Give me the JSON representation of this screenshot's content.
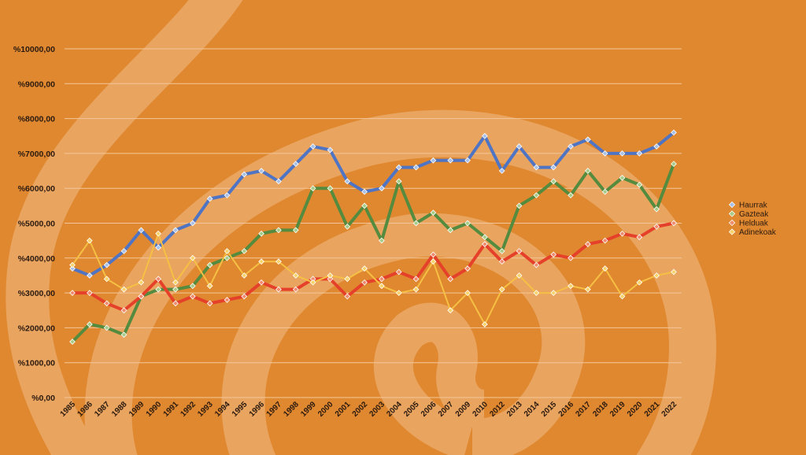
{
  "chart_data": {
    "type": "line",
    "title": "",
    "xlabel": "",
    "ylabel": "",
    "ylim": [
      0,
      10000
    ],
    "y_tick_values": [
      0,
      1000,
      2000,
      3000,
      4000,
      5000,
      6000,
      7000,
      8000,
      9000,
      10000
    ],
    "y_tick_labels": [
      "%0,00",
      "%1000,00",
      "%2000,00",
      "%3000,00",
      "%4000,00",
      "%5000,00",
      "%6000,00",
      "%7000,00",
      "%8000,00",
      "%9000,00",
      "%10000,00"
    ],
    "grid": true,
    "legend_position": "right",
    "background_color": "#E0882F",
    "categories": [
      "1985",
      "1986",
      "1987",
      "1988",
      "1989",
      "1990",
      "1991",
      "1992",
      "1993",
      "1994",
      "1995",
      "1996",
      "1997",
      "1998",
      "1999",
      "2000",
      "2001",
      "2002",
      "2003",
      "2004",
      "2005",
      "2006",
      "2007",
      "2009",
      "2010",
      "2012",
      "2013",
      "2014",
      "2015",
      "2016",
      "2017",
      "2018",
      "2019",
      "2020",
      "2021",
      "2022"
    ],
    "series": [
      {
        "name": "Haurrak",
        "color": "#4F74C4",
        "marker_color": "#A9C1E8",
        "values": [
          3700,
          3500,
          3800,
          4200,
          4800,
          4300,
          4800,
          5000,
          5700,
          5800,
          6400,
          6500,
          6200,
          6700,
          7200,
          7100,
          6200,
          5900,
          6000,
          6600,
          6600,
          6800,
          6800,
          6800,
          7500,
          6500,
          7200,
          6600,
          6600,
          7200,
          7400,
          7000,
          7000,
          7000,
          7200,
          7600
        ]
      },
      {
        "name": "Gazteak",
        "color": "#558B3E",
        "marker_color": "#A6CC88",
        "values": [
          1600,
          2100,
          2000,
          1800,
          2900,
          3100,
          3100,
          3200,
          3800,
          4000,
          4200,
          4700,
          4800,
          4800,
          6000,
          6000,
          4900,
          5500,
          4500,
          6200,
          5000,
          5300,
          4800,
          5000,
          4600,
          4200,
          5500,
          5800,
          6200,
          5800,
          6500,
          5900,
          6300,
          6100,
          5400,
          6700
        ]
      },
      {
        "name": "Helduak",
        "color": "#E5412A",
        "marker_color": "#F08C6E",
        "values": [
          3000,
          3000,
          2700,
          2500,
          2900,
          3400,
          2700,
          2900,
          2700,
          2800,
          2900,
          3300,
          3100,
          3100,
          3400,
          3400,
          2900,
          3300,
          3400,
          3600,
          3400,
          4100,
          3400,
          3700,
          4400,
          3900,
          4200,
          3800,
          4100,
          4000,
          4400,
          4500,
          4700,
          4600,
          4900,
          5000
        ]
      },
      {
        "name": "Adinekoak",
        "color": "#F5C043",
        "marker_color": "#F8D26A",
        "values": [
          3800,
          4500,
          3400,
          3100,
          3300,
          4700,
          3300,
          4000,
          3200,
          4200,
          3500,
          3900,
          3900,
          3500,
          3300,
          3500,
          3400,
          3700,
          3200,
          3000,
          3100,
          3900,
          2500,
          3000,
          2100,
          3100,
          3500,
          3000,
          3000,
          3200,
          3100,
          3700,
          2900,
          3300,
          3500,
          3600
        ]
      }
    ]
  }
}
